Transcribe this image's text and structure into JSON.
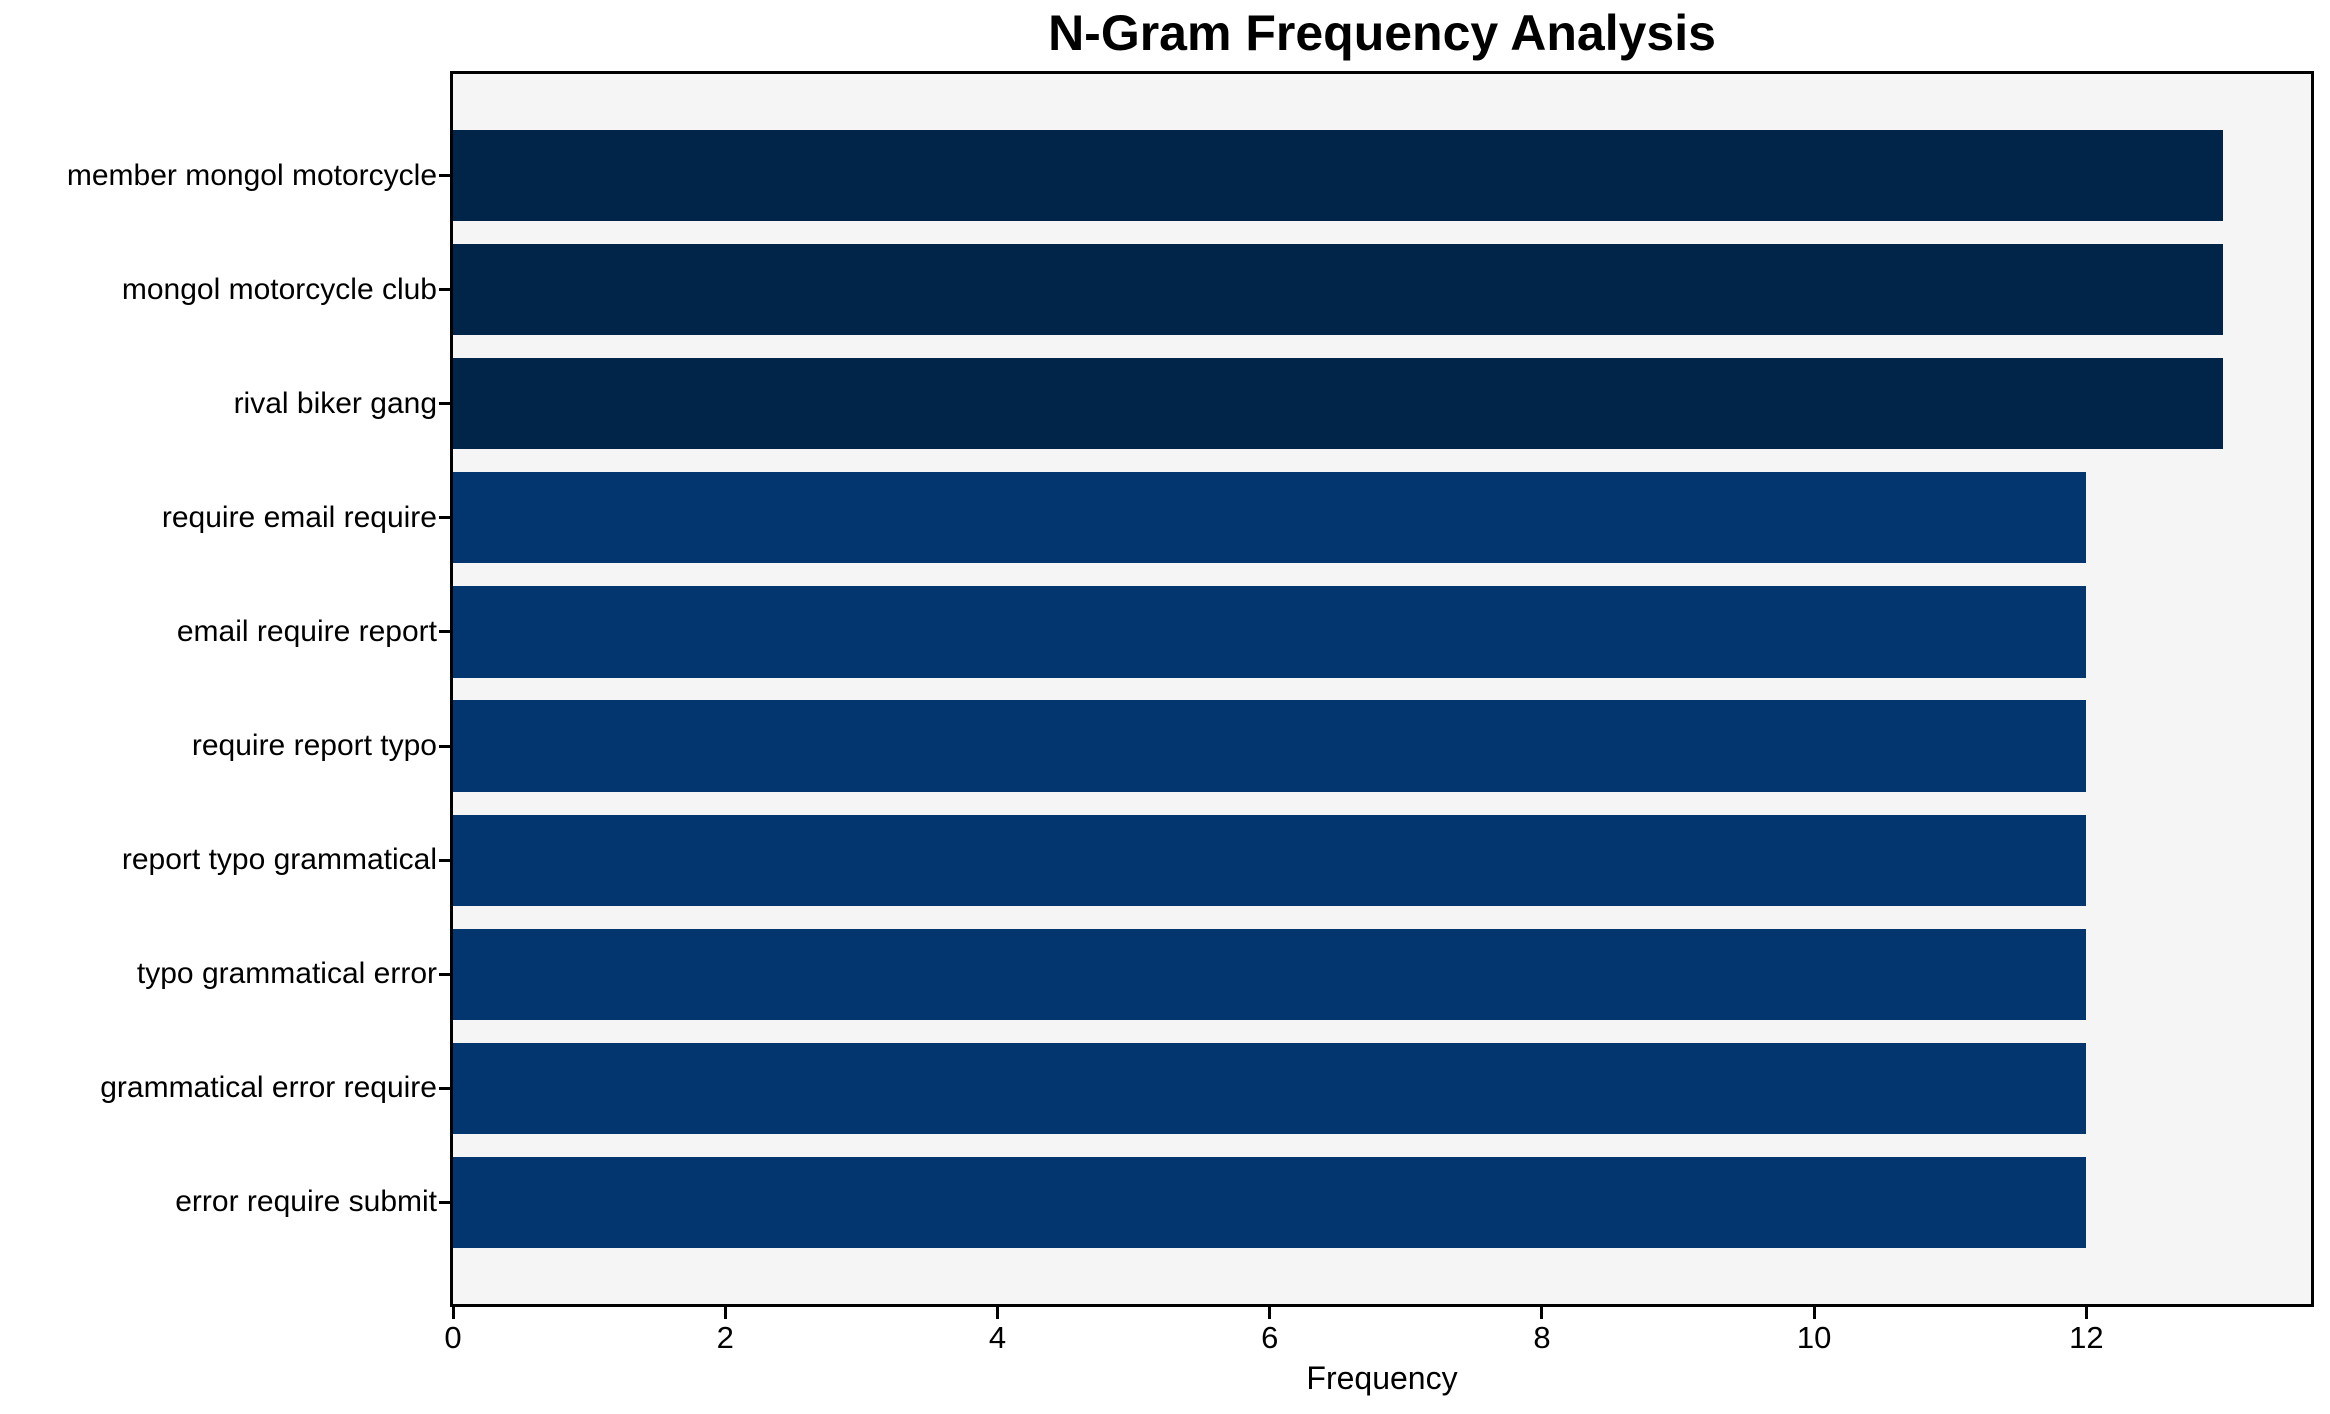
{
  "chart_data": {
    "type": "bar",
    "orientation": "horizontal",
    "title": "N-Gram Frequency Analysis",
    "xlabel": "Frequency",
    "ylabel": "",
    "categories": [
      "member mongol motorcycle",
      "mongol motorcycle club",
      "rival biker gang",
      "require email require",
      "email require report",
      "require report typo",
      "report typo grammatical",
      "typo grammatical error",
      "grammatical error require",
      "error require submit"
    ],
    "values": [
      13,
      13,
      13,
      12,
      12,
      12,
      12,
      12,
      12,
      12
    ],
    "bar_colors": [
      "#012449",
      "#012449",
      "#012449",
      "#03356e",
      "#03356e",
      "#03356e",
      "#03356e",
      "#03356e",
      "#03356e",
      "#03356e"
    ],
    "xticks": [
      0,
      2,
      4,
      6,
      8,
      10,
      12
    ],
    "xlim": [
      0,
      13.65
    ],
    "grid": false,
    "legend": null,
    "plot_background": "#f5f5f6",
    "figure_background": "#ffffff",
    "axis_color": "#000000",
    "text_color": "#000000"
  }
}
